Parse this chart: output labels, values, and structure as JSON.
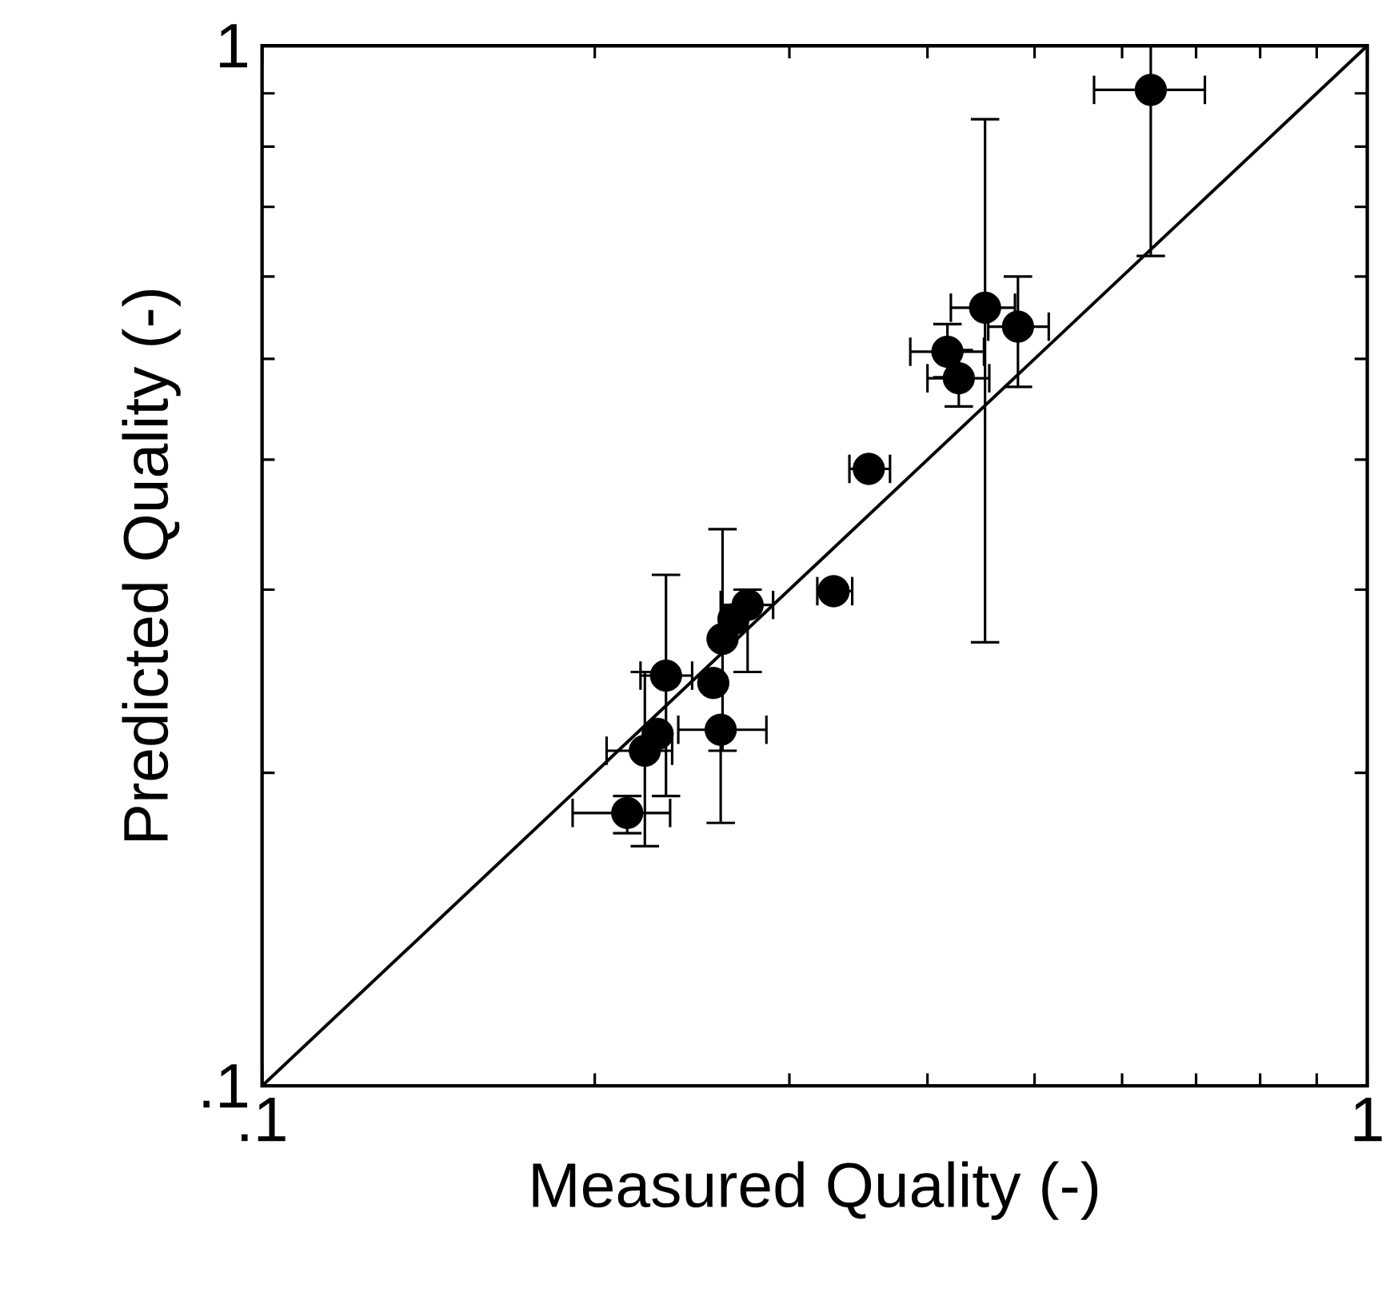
{
  "chart_data": {
    "type": "scatter",
    "xlabel": "Measured Quality (-)",
    "ylabel": "Predicted Quality (-)",
    "log": "xy",
    "xlim": [
      0.1,
      1
    ],
    "ylim": [
      0.1,
      1
    ],
    "xticks": [
      {
        "value": 0.1,
        "label": ".1"
      },
      1
    ],
    "yticks": [
      {
        "value": 0.1,
        "label": ".1"
      },
      1
    ],
    "series": [
      {
        "color": "#000000",
        "x": [
          0.637,
          0.451,
          0.483,
          0.417,
          0.427,
          0.354,
          0.329,
          0.275,
          0.267,
          0.261,
          0.256,
          0.232,
          0.26,
          0.228,
          0.222,
          0.214
        ],
        "values": [
          0.907,
          0.56,
          0.537,
          0.508,
          0.479,
          0.392,
          0.299,
          0.29,
          0.281,
          0.269,
          0.244,
          0.248,
          0.22,
          0.218,
          0.21,
          0.183
        ],
        "errors": [
          [
            0.628,
            1.0
          ],
          [
            0.267,
            0.85
          ],
          [
            0.47,
            0.6
          ],
          [
            0.48,
            0.54
          ],
          [
            0.45,
            0.51
          ],
          null,
          null,
          [
            0.25,
            0.3
          ],
          null,
          [
            0.21,
            0.343
          ],
          null,
          [
            0.19,
            0.31
          ],
          [
            0.179,
            0.22
          ],
          null,
          [
            0.17,
            0.25
          ],
          [
            0.175,
            0.19
          ]
        ],
        "xerrors": [
          [
            0.566,
            0.713
          ],
          [
            0.42,
            0.48
          ],
          [
            0.454,
            0.515
          ],
          [
            0.386,
            0.45
          ],
          [
            0.4,
            0.455
          ],
          [
            0.34,
            0.37
          ],
          [
            0.318,
            0.342
          ],
          [
            0.26,
            0.29
          ],
          null,
          null,
          null,
          [
            0.22,
            0.245
          ],
          [
            0.238,
            0.286
          ],
          null,
          [
            0.205,
            0.235
          ],
          [
            0.191,
            0.234
          ]
        ]
      },
      {
        "type": "line",
        "color": "#000000",
        "x": [
          0.1,
          1
        ],
        "values": [
          0.1,
          1
        ]
      }
    ]
  }
}
